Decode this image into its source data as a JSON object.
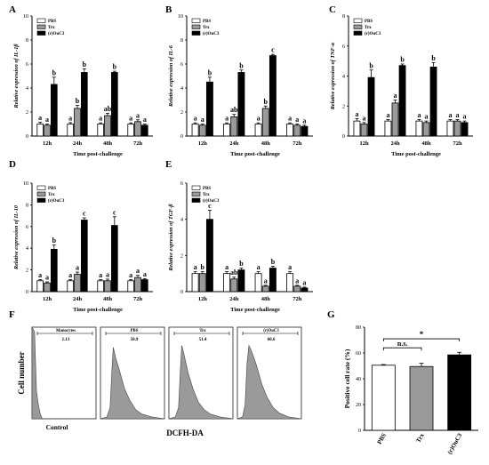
{
  "panel_letters": [
    "A",
    "B",
    "C",
    "D",
    "E",
    "F",
    "G"
  ],
  "chart_data": [
    {
      "panel": "A",
      "type": "bar",
      "ylabel": "Relative expression of IL-1β",
      "xlabel": "Time post-challenge",
      "categories": [
        "12h",
        "24h",
        "48h",
        "72h"
      ],
      "ylim": [
        0,
        10
      ],
      "yticks": [
        0,
        2,
        4,
        6,
        8,
        10
      ],
      "legend": [
        "PBS",
        "Trx",
        "(r)OuC3"
      ],
      "legend_position": "top-left",
      "series": [
        {
          "name": "PBS",
          "color": "#ffffff",
          "values": [
            1.0,
            1.0,
            1.0,
            1.0
          ],
          "errors": [
            0.15,
            0.12,
            0.1,
            0.1
          ]
        },
        {
          "name": "Trx",
          "color": "#9a9a9a",
          "values": [
            0.9,
            2.3,
            1.7,
            1.2
          ],
          "errors": [
            0.1,
            0.25,
            0.2,
            0.15
          ]
        },
        {
          "name": "(r)OuC3",
          "color": "#000000",
          "values": [
            4.3,
            5.3,
            5.3,
            0.9
          ],
          "errors": [
            0.6,
            0.3,
            0.1,
            0.1
          ]
        }
      ],
      "letters": [
        [
          "a",
          "a",
          "b"
        ],
        [
          "a",
          "b",
          "b"
        ],
        [
          "a",
          "ab",
          "b"
        ],
        [
          "a",
          "a",
          "a"
        ]
      ]
    },
    {
      "panel": "B",
      "type": "bar",
      "ylabel": "Relative expression of IL-6",
      "xlabel": "Time post-challenge",
      "categories": [
        "12h",
        "24h",
        "48h",
        "72h"
      ],
      "ylim": [
        0,
        10
      ],
      "yticks": [
        0,
        2,
        4,
        6,
        8,
        10
      ],
      "legend": [
        "PBS",
        "Trx",
        "(r)OuC3"
      ],
      "legend_position": "top-left",
      "series": [
        {
          "name": "PBS",
          "color": "#ffffff",
          "values": [
            1.0,
            1.0,
            1.0,
            1.0
          ],
          "errors": [
            0.1,
            0.1,
            0.1,
            0.1
          ]
        },
        {
          "name": "Trx",
          "color": "#9a9a9a",
          "values": [
            0.9,
            1.6,
            2.3,
            0.9
          ],
          "errors": [
            0.1,
            0.2,
            0.2,
            0.1
          ]
        },
        {
          "name": "(r)OuC3",
          "color": "#000000",
          "values": [
            4.5,
            5.3,
            6.7,
            0.8
          ],
          "errors": [
            0.4,
            0.2,
            0.1,
            0.1
          ]
        }
      ],
      "letters": [
        [
          "a",
          "a",
          "b"
        ],
        [
          "a",
          "ab",
          "b"
        ],
        [
          "a",
          "b",
          "c"
        ],
        [
          "a",
          "a",
          "a"
        ]
      ]
    },
    {
      "panel": "C",
      "type": "bar",
      "ylabel": "Relative expression of TNF-α",
      "xlabel": "Time post-challenge",
      "categories": [
        "12h",
        "24h",
        "48h",
        "72h"
      ],
      "ylim": [
        0,
        8
      ],
      "yticks": [
        0,
        2,
        4,
        6,
        8
      ],
      "legend": [
        "PBS",
        "Trx",
        "(r)OuC3"
      ],
      "legend_position": "top-left",
      "series": [
        {
          "name": "PBS",
          "color": "#ffffff",
          "values": [
            1.0,
            1.0,
            1.0,
            1.0
          ],
          "errors": [
            0.15,
            0.1,
            0.1,
            0.1
          ]
        },
        {
          "name": "Trx",
          "color": "#9a9a9a",
          "values": [
            0.8,
            2.2,
            0.9,
            1.0
          ],
          "errors": [
            0.1,
            0.2,
            0.1,
            0.1
          ]
        },
        {
          "name": "(r)OuC3",
          "color": "#000000",
          "values": [
            3.9,
            4.7,
            4.6,
            0.9
          ],
          "errors": [
            0.5,
            0.1,
            0.3,
            0.1
          ]
        }
      ],
      "letters": [
        [
          "a",
          "a",
          "b"
        ],
        [
          "a",
          "a",
          "b"
        ],
        [
          "a",
          "a",
          "b"
        ],
        [
          "a",
          "a",
          "a"
        ]
      ]
    },
    {
      "panel": "D",
      "type": "bar",
      "ylabel": "Relative expression of IL-10",
      "xlabel": "Time post-challenge",
      "categories": [
        "12h",
        "24h",
        "48h",
        "72h"
      ],
      "ylim": [
        0,
        10
      ],
      "yticks": [
        0,
        2,
        4,
        6,
        8,
        10
      ],
      "legend": [
        "PBS",
        "Trx",
        "(r)OuC3"
      ],
      "legend_position": "top-left",
      "series": [
        {
          "name": "PBS",
          "color": "#ffffff",
          "values": [
            1.0,
            1.0,
            1.0,
            1.0
          ],
          "errors": [
            0.1,
            0.1,
            0.1,
            0.1
          ]
        },
        {
          "name": "Trx",
          "color": "#9a9a9a",
          "values": [
            0.8,
            1.6,
            1.0,
            1.3
          ],
          "errors": [
            0.1,
            0.2,
            0.15,
            0.2
          ]
        },
        {
          "name": "(r)OuC3",
          "color": "#000000",
          "values": [
            3.9,
            6.6,
            6.1,
            1.1
          ],
          "errors": [
            0.4,
            0.2,
            0.8,
            0.1
          ]
        }
      ],
      "letters": [
        [
          "a",
          "a",
          "b"
        ],
        [
          "a",
          "a",
          "c"
        ],
        [
          "a",
          "a",
          "c"
        ],
        [
          "a",
          "a",
          "a"
        ]
      ]
    },
    {
      "panel": "E",
      "type": "bar",
      "ylabel": "Relative expression of TGF-β",
      "xlabel": "Time post-challenge",
      "categories": [
        "12h",
        "24h",
        "48h",
        "72h"
      ],
      "ylim": [
        0,
        6
      ],
      "yticks": [
        0,
        2,
        4,
        6
      ],
      "legend": [
        "PBS",
        "Trx",
        "(r)OuC3"
      ],
      "legend_position": "top-left",
      "series": [
        {
          "name": "PBS",
          "color": "#ffffff",
          "values": [
            1.0,
            1.0,
            1.0,
            1.0
          ],
          "errors": [
            0.1,
            0.1,
            0.1,
            0.1
          ]
        },
        {
          "name": "Trx",
          "color": "#9a9a9a",
          "values": [
            1.0,
            0.7,
            0.3,
            0.3
          ],
          "errors": [
            0.1,
            0.1,
            0.05,
            0.05
          ]
        },
        {
          "name": "(r)OuC3",
          "color": "#000000",
          "values": [
            4.0,
            1.2,
            1.3,
            0.2
          ],
          "errors": [
            0.5,
            0.1,
            0.1,
            0.05
          ]
        }
      ],
      "letters": [
        [
          "a",
          "b",
          "c"
        ],
        [
          "a",
          "ab",
          "b"
        ],
        [
          "a",
          "a",
          "b"
        ],
        [
          "a",
          "a",
          "a"
        ]
      ]
    },
    {
      "panel": "F",
      "type": "area",
      "ylabel": "Cell number",
      "xlabel": "DCFH-DA",
      "footnote": "Control",
      "histograms": [
        {
          "label": "Monocytes",
          "value": "1.13"
        },
        {
          "label": "PBS",
          "value": "50.9"
        },
        {
          "label": "Trx",
          "value": "51.4"
        },
        {
          "label": "(r)OuC3",
          "value": "60.6"
        }
      ]
    },
    {
      "panel": "G",
      "type": "bar",
      "ylabel": "Positive cell rate (%)",
      "categories": [
        "PBS",
        "Trx",
        "(r)OuC3"
      ],
      "ylim": [
        0,
        80
      ],
      "yticks": [
        0,
        20,
        40,
        60,
        80
      ],
      "values": [
        50.5,
        49.5,
        58.5
      ],
      "errors": [
        0.5,
        2.5,
        2.0
      ],
      "colors": [
        "#ffffff",
        "#9a9a9a",
        "#000000"
      ],
      "annotations": [
        "n.s.",
        "*"
      ]
    }
  ]
}
